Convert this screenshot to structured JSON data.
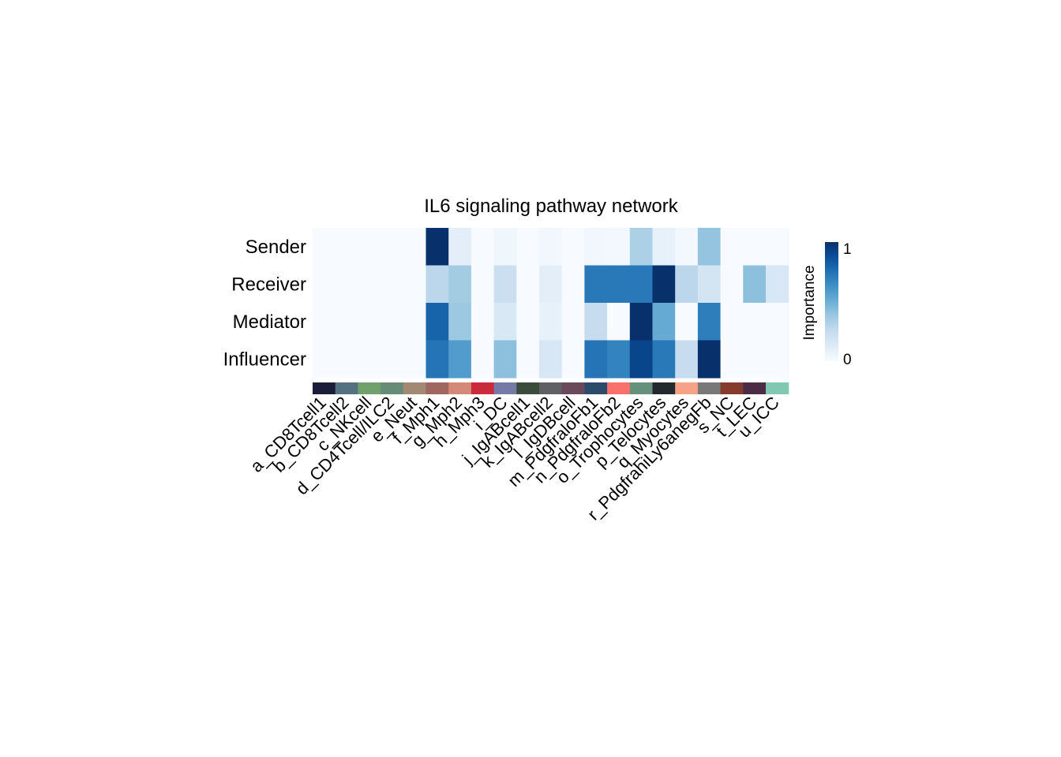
{
  "chart_data": {
    "type": "heatmap",
    "title": "IL6 signaling pathway network",
    "rows": [
      "Sender",
      "Receiver",
      "Mediator",
      "Influencer"
    ],
    "columns": [
      "a_CD8Tcell1",
      "b_CD8Tcell2",
      "c_NKcell",
      "d_CD4Tcell/ILC2",
      "e_Neut",
      "f_Mph1",
      "g_Mph2",
      "h_Mph3",
      "i_DC",
      "j_IgABcell1",
      "k_IgABcell2",
      "l_IgDBcell",
      "m_PdgfraloFb1",
      "n_PdgfraloFb2",
      "o_Trophocytes",
      "p_Telocytes",
      "q_Myocytes",
      "r_PdgfrahiLy6anegFb",
      "s_NC",
      "t_LEC",
      "u_ICC"
    ],
    "column_colors": [
      "#1C1D3A",
      "#53717F",
      "#70A06C",
      "#668C78",
      "#A38873",
      "#A06662",
      "#D58A79",
      "#CB2A3C",
      "#7579A8",
      "#3C4C3C",
      "#5E6064",
      "#6A4A5A",
      "#2C4A6A",
      "#FA716B",
      "#65917C",
      "#232A2E",
      "#F6A286",
      "#787878",
      "#863C2C",
      "#4B2C44",
      "#81C8B2"
    ],
    "values": [
      [
        0,
        0,
        0,
        0,
        0,
        1.0,
        0.1,
        0,
        0.04,
        0,
        0.03,
        0,
        0.03,
        0.02,
        0.33,
        0.08,
        0.02,
        0.4,
        0,
        0,
        0
      ],
      [
        0,
        0,
        0,
        0,
        0,
        0.28,
        0.36,
        0,
        0.22,
        0,
        0.1,
        0,
        0.72,
        0.72,
        0.72,
        1.0,
        0.28,
        0.18,
        0,
        0.42,
        0.16
      ],
      [
        0,
        0,
        0,
        0,
        0,
        0.8,
        0.38,
        0,
        0.15,
        0,
        0.08,
        0,
        0.24,
        0,
        1.0,
        0.52,
        0,
        0.7,
        0,
        0,
        0
      ],
      [
        0,
        0,
        0,
        0,
        0,
        0.74,
        0.58,
        0,
        0.42,
        0,
        0.16,
        0,
        0.74,
        0.68,
        0.92,
        0.72,
        0.24,
        1.0,
        0,
        0,
        0
      ]
    ],
    "colorbar": {
      "label": "Importance",
      "min": 0,
      "max": 1,
      "ticks": [
        "0",
        "1"
      ]
    },
    "colormap": "Blues"
  }
}
